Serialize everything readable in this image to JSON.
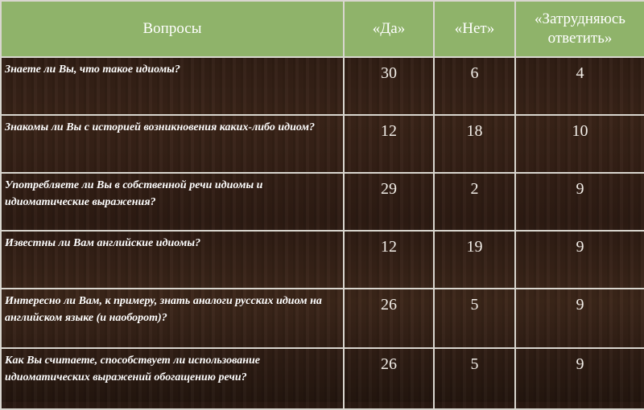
{
  "header": {
    "questions": "Вопросы",
    "yes": "«Да»",
    "no": "«Нет»",
    "unsure": "«Затрудняюсь ответить»"
  },
  "colors": {
    "header_bg": "#8fb36a",
    "body_bg": "#2e1c13"
  },
  "rows": [
    {
      "question": "Знаете ли Вы, что такое идиомы?",
      "yes": "30",
      "no": "6",
      "unsure": "4"
    },
    {
      "question": "Знакомы ли Вы с историей возникновения каких-либо идиом?",
      "yes": "12",
      "no": "18",
      "unsure": "10"
    },
    {
      "question": "Употребляете ли Вы в собственной речи идиомы и идиоматические выражения?",
      "yes": "29",
      "no": "2",
      "unsure": "9"
    },
    {
      "question": "Известны ли Вам английские идиомы?",
      "yes": "12",
      "no": "19",
      "unsure": "9"
    },
    {
      "question": "Интересно ли Вам, к примеру, знать аналоги русских идиом на английском языке (и наоборот)?",
      "yes": "26",
      "no": "5",
      "unsure": "9"
    },
    {
      "question": "Как Вы считаете, способствует ли использование идиоматических выражений обогащению речи?",
      "yes": "26",
      "no": "5",
      "unsure": "9"
    }
  ]
}
